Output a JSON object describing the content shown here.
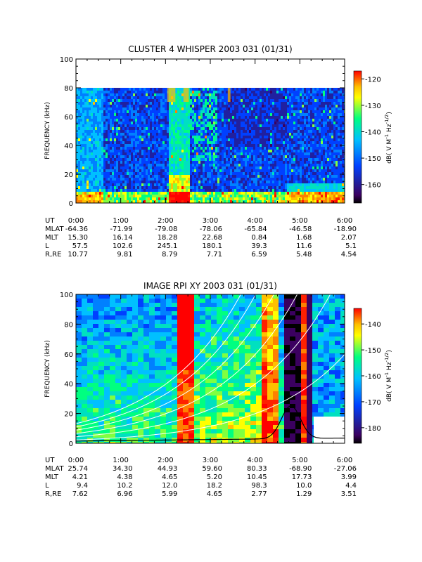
{
  "chart_data": [
    {
      "type": "heatmap",
      "title": "CLUSTER 4 WHISPER 2003 031 (01/31)",
      "ylabel": "FREQUENCY (kHz)",
      "ylim": [
        0,
        100
      ],
      "yticks": [
        "0",
        "20",
        "40",
        "60",
        "80",
        "100"
      ],
      "xlim": [
        "0:00",
        "6:00"
      ],
      "data_ceiling_khz": 80,
      "colorbar": {
        "label": "dB( V M",
        "label_sup1": "-1",
        "label_mid": " Hz",
        "label_sup2": "-1/2",
        "label_end": ")",
        "range": [
          -167,
          -117
        ],
        "ticks": [
          "-120",
          "-130",
          "-140",
          "-150",
          "-160"
        ]
      },
      "ephemeris": {
        "row_labels": [
          "UT",
          "MLAT",
          "MLT",
          "L",
          "R,RE"
        ],
        "columns": [
          [
            "0:00",
            "-64.36",
            "15.30",
            "57.5",
            "10.77"
          ],
          [
            "1:00",
            "-71.99",
            "16.14",
            "102.6",
            "9.81"
          ],
          [
            "2:00",
            "-79.08",
            "18.28",
            "245.1",
            "8.79"
          ],
          [
            "3:00",
            "-78.06",
            "22.68",
            "180.1",
            "7.71"
          ],
          [
            "4:00",
            "-65.84",
            "0.84",
            "39.3",
            "6.59"
          ],
          [
            "5:00",
            "-46.58",
            "1.68",
            "11.6",
            "5.48"
          ],
          [
            "6:00",
            "-18.90",
            "2.07",
            "5.1",
            "4.54"
          ]
        ]
      }
    },
    {
      "type": "heatmap",
      "title": "IMAGE RPI XY 2003 031 (01/31)",
      "ylabel": "FREQUENCY (kHz)",
      "ylim": [
        0,
        100
      ],
      "yticks": [
        "0",
        "20",
        "40",
        "60",
        "80",
        "100"
      ],
      "xlim": [
        "0:00",
        "6:00"
      ],
      "colorbar": {
        "label": "dB( V M",
        "label_sup1": "-1",
        "label_mid": " Hz",
        "label_sup2": "-1/2",
        "label_end": ")",
        "range": [
          -186,
          -134
        ],
        "ticks": [
          "-140",
          "-150",
          "-160",
          "-170",
          "-180"
        ]
      },
      "ephemeris": {
        "row_labels": [
          "UT",
          "MLAT",
          "MLT",
          "L",
          "R,RE"
        ],
        "columns": [
          [
            "0:00",
            "25.74",
            "4.21",
            "9.4",
            "7.62"
          ],
          [
            "1:00",
            "34.30",
            "4.38",
            "10.2",
            "6.96"
          ],
          [
            "2:00",
            "44.93",
            "4.65",
            "12.0",
            "5.99"
          ],
          [
            "3:00",
            "59.60",
            "5.20",
            "18.2",
            "4.65"
          ],
          [
            "4:00",
            "80.33",
            "10.45",
            "98.3",
            "2.77"
          ],
          [
            "5:00",
            "-68.90",
            "17.73",
            "10.0",
            "1.29"
          ],
          [
            "6:00",
            "-27.06",
            "3.99",
            "4.4",
            "3.51"
          ]
        ]
      }
    }
  ],
  "colors": {
    "palette": [
      "#000000",
      "#3b0060",
      "#2020a0",
      "#0040ff",
      "#0080ff",
      "#00c0ff",
      "#00e0c0",
      "#00ff80",
      "#80ff40",
      "#ffff00",
      "#ffc000",
      "#ff8000",
      "#ff2000",
      "#ff0000"
    ]
  }
}
